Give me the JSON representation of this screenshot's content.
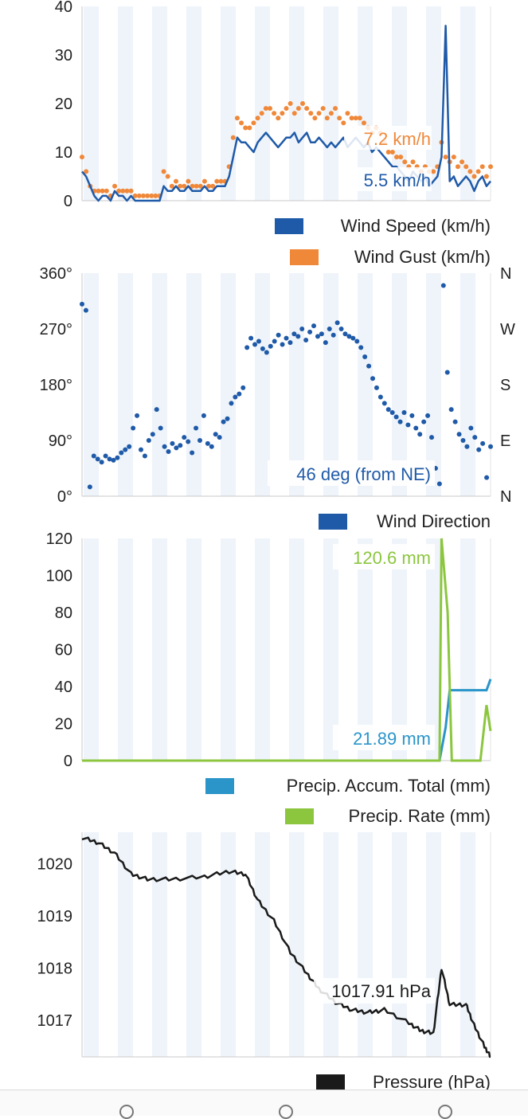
{
  "chart_data": [
    {
      "type": "line",
      "name": "wind",
      "ylim": [
        0,
        40
      ],
      "yticks": [
        0,
        10,
        20,
        30,
        40
      ],
      "series": [
        {
          "name": "Wind Speed (km/h)",
          "color": "#1f5aa8",
          "values": [
            6,
            5,
            3,
            1,
            0,
            1,
            1,
            0,
            2,
            1,
            1,
            0,
            1,
            0,
            0,
            0,
            0,
            0,
            0,
            0,
            3,
            2,
            2,
            3,
            2,
            2,
            3,
            2,
            2,
            2,
            3,
            2,
            2,
            3,
            3,
            3,
            5,
            9,
            13,
            12,
            12,
            11,
            10,
            12,
            13,
            14,
            13,
            12,
            11,
            12,
            13,
            13,
            14,
            12,
            13,
            14,
            12,
            12,
            13,
            12,
            11,
            12,
            11,
            12,
            13,
            11,
            12,
            13,
            12,
            11,
            12,
            10,
            11,
            10,
            9,
            8,
            7,
            7,
            6,
            5,
            4,
            6,
            5,
            4,
            5,
            3,
            4,
            5,
            9,
            36,
            4,
            5,
            3,
            4,
            5,
            4,
            2,
            4,
            5,
            3,
            4
          ]
        },
        {
          "name": "Wind Gust (km/h)",
          "color": "#f0883a",
          "values": [
            9,
            6,
            3,
            2,
            2,
            2,
            2,
            1,
            3,
            2,
            2,
            2,
            2,
            1,
            1,
            1,
            1,
            1,
            1,
            1,
            6,
            5,
            3,
            4,
            3,
            3,
            4,
            3,
            3,
            3,
            4,
            3,
            3,
            4,
            4,
            4,
            7,
            13,
            17,
            16,
            15,
            15,
            16,
            17,
            18,
            19,
            19,
            18,
            17,
            18,
            19,
            20,
            18,
            19,
            20,
            19,
            18,
            17,
            18,
            19,
            17,
            18,
            19,
            17,
            16,
            18,
            17,
            17,
            17,
            16,
            15,
            14,
            15,
            14,
            12,
            10,
            10,
            9,
            9,
            8,
            7,
            8,
            7,
            6,
            7,
            6,
            6,
            7,
            12,
            9,
            8,
            9,
            7,
            8,
            7,
            6,
            5,
            6,
            7,
            5,
            7
          ]
        }
      ],
      "annotations": [
        "7.2 km/h",
        "5.5 km/h"
      ]
    },
    {
      "type": "scatter",
      "name": "direction",
      "ylim": [
        0,
        360
      ],
      "yticks": [
        "0°",
        "90°",
        "180°",
        "270°",
        "360°"
      ],
      "right_ticks": [
        "N",
        "E",
        "S",
        "W",
        "N"
      ],
      "series": [
        {
          "name": "Wind Direction",
          "color": "#1f5aa8",
          "values": [
            310,
            300,
            15,
            65,
            60,
            55,
            65,
            60,
            58,
            62,
            70,
            75,
            80,
            110,
            130,
            75,
            65,
            90,
            100,
            140,
            110,
            80,
            72,
            85,
            78,
            82,
            95,
            88,
            70,
            110,
            90,
            130,
            85,
            80,
            100,
            95,
            120,
            125,
            150,
            160,
            165,
            175,
            240,
            255,
            245,
            250,
            238,
            232,
            242,
            250,
            260,
            245,
            255,
            248,
            262,
            258,
            270,
            252,
            265,
            275,
            258,
            262,
            248,
            270,
            260,
            280,
            270,
            262,
            258,
            255,
            250,
            240,
            225,
            210,
            190,
            175,
            160,
            150,
            140,
            135,
            128,
            120,
            135,
            115,
            130,
            110,
            100,
            120,
            130,
            95,
            45,
            20,
            340,
            200,
            140,
            120,
            100,
            90,
            80,
            110,
            95,
            75,
            85,
            30,
            80
          ]
        }
      ],
      "annotations": [
        "46 deg (from NE)"
      ]
    },
    {
      "type": "line",
      "name": "precip",
      "ylim": [
        0,
        120
      ],
      "yticks": [
        0,
        20,
        40,
        60,
        80,
        100,
        120
      ],
      "series": [
        {
          "name": "Precip. Accum. Total (mm)",
          "color": "#2b95c9",
          "points": [
            [
              0,
              0
            ],
            [
              0.875,
              0
            ],
            [
              0.89,
              18
            ],
            [
              0.9,
              38
            ],
            [
              0.99,
              38
            ],
            [
              1.0,
              44
            ]
          ]
        },
        {
          "name": "Precip. Rate (mm)",
          "color": "#8cc63f",
          "points": [
            [
              0,
              0
            ],
            [
              0.875,
              0
            ],
            [
              0.88,
              120
            ],
            [
              0.895,
              80
            ],
            [
              0.905,
              0
            ],
            [
              0.975,
              0
            ],
            [
              0.99,
              30
            ],
            [
              1.0,
              16
            ]
          ]
        }
      ],
      "annotations": [
        "120.6 mm",
        "21.89 mm"
      ]
    },
    {
      "type": "line",
      "name": "pressure",
      "ylim": [
        1016.3,
        1020.6
      ],
      "yticks": [
        1017,
        1018,
        1019,
        1020
      ],
      "series": [
        {
          "name": "Pressure (hPa)",
          "color": "#1a1a1a",
          "points": [
            [
              0,
              1020.5
            ],
            [
              0.04,
              1020.4
            ],
            [
              0.08,
              1020.2
            ],
            [
              0.12,
              1019.8
            ],
            [
              0.16,
              1019.7
            ],
            [
              0.22,
              1019.7
            ],
            [
              0.3,
              1019.75
            ],
            [
              0.36,
              1019.85
            ],
            [
              0.4,
              1019.8
            ],
            [
              0.43,
              1019.3
            ],
            [
              0.47,
              1018.9
            ],
            [
              0.51,
              1018.3
            ],
            [
              0.55,
              1017.9
            ],
            [
              0.58,
              1017.6
            ],
            [
              0.62,
              1017.35
            ],
            [
              0.66,
              1017.2
            ],
            [
              0.7,
              1017.15
            ],
            [
              0.74,
              1017.2
            ],
            [
              0.8,
              1016.95
            ],
            [
              0.83,
              1016.8
            ],
            [
              0.86,
              1016.75
            ],
            [
              0.88,
              1018.0
            ],
            [
              0.9,
              1017.3
            ],
            [
              0.94,
              1017.3
            ],
            [
              0.96,
              1016.9
            ],
            [
              0.985,
              1016.5
            ],
            [
              1.0,
              1016.3
            ]
          ]
        }
      ],
      "annotations": [
        "1017.91 hPa"
      ]
    }
  ]
}
